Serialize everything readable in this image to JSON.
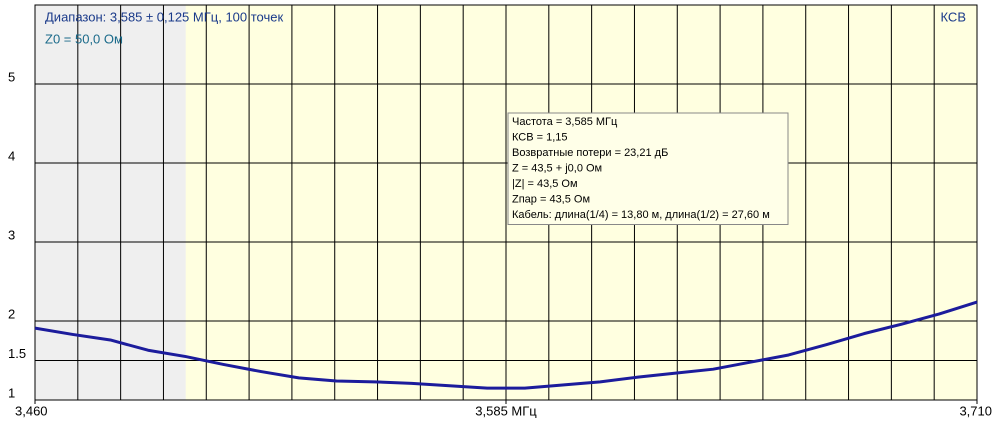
{
  "chart_data": {
    "type": "line",
    "title": "Диапазон: 3,585 ± 0,125 МГц, 100 точек",
    "subtitle": "Z0 = 50,0 Ом",
    "y_label": "КСВ",
    "x": [
      3.46,
      3.47,
      3.48,
      3.49,
      3.5,
      3.51,
      3.52,
      3.53,
      3.54,
      3.55,
      3.56,
      3.57,
      3.58,
      3.59,
      3.6,
      3.61,
      3.62,
      3.63,
      3.64,
      3.65,
      3.66,
      3.67,
      3.68,
      3.69,
      3.7,
      3.71
    ],
    "series": [
      {
        "name": "КСВ",
        "color": "#1c1c9c",
        "values": [
          1.91,
          1.83,
          1.76,
          1.63,
          1.55,
          1.45,
          1.36,
          1.28,
          1.24,
          1.23,
          1.21,
          1.18,
          1.15,
          1.15,
          1.19,
          1.23,
          1.29,
          1.34,
          1.39,
          1.48,
          1.57,
          1.7,
          1.84,
          1.96,
          2.09,
          2.24
        ]
      }
    ],
    "xlim": [
      3.46,
      3.71
    ],
    "xticks": [
      {
        "value": 3.46,
        "label": "3,460"
      },
      {
        "value": 3.585,
        "label": "3,585 МГц"
      },
      {
        "value": 3.71,
        "label": "3,710"
      }
    ],
    "ylim": [
      1,
      6
    ],
    "yticks": [
      1,
      1.5,
      2,
      3,
      4,
      5
    ],
    "grid": true,
    "shaded_range": [
      3.46,
      3.5
    ],
    "tooltip": [
      "Частота = 3,585 МГц",
      "КСВ = 1,15",
      "Возвратные потери = 23,21 дБ",
      "Z = 43,5 + j0,0 Ом",
      "|Z| = 43,5 Ом",
      "Zпар = 43,5 Ом",
      "Кабель: длина(1/4) = 13,80 м, длина(1/2) = 27,60 м"
    ]
  }
}
